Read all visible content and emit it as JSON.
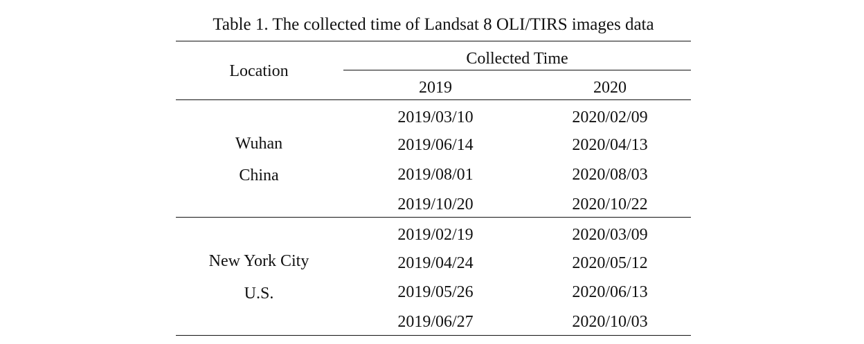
{
  "table": {
    "caption": "Table 1. The collected time of Landsat 8 OLI/TIRS images data",
    "header": {
      "location": "Location",
      "collected_time": "Collected Time",
      "year_2019": "2019",
      "year_2020": "2020"
    },
    "groups": [
      {
        "location_line1": "Wuhan",
        "location_line2": "China",
        "rows": [
          {
            "y2019": "2019/03/10",
            "y2020": "2020/02/09"
          },
          {
            "y2019": "2019/06/14",
            "y2020": "2020/04/13"
          },
          {
            "y2019": "2019/08/01",
            "y2020": "2020/08/03"
          },
          {
            "y2019": "2019/10/20",
            "y2020": "2020/10/22"
          }
        ]
      },
      {
        "location_line1": "New York City",
        "location_line2": "U.S.",
        "rows": [
          {
            "y2019": "2019/02/19",
            "y2020": "2020/03/09"
          },
          {
            "y2019": "2019/04/24",
            "y2020": "2020/05/12"
          },
          {
            "y2019": "2019/05/26",
            "y2020": "2020/06/13"
          },
          {
            "y2019": "2019/06/27",
            "y2020": "2020/10/03"
          }
        ]
      }
    ]
  }
}
